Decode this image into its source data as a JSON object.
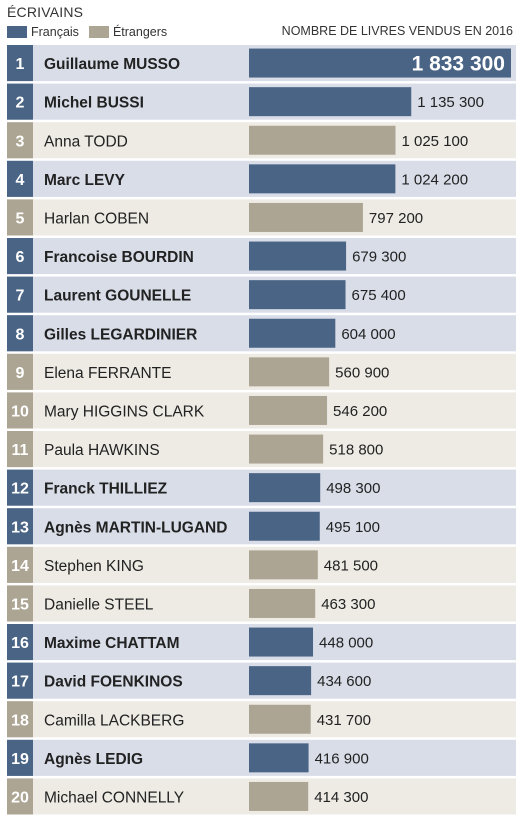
{
  "header": {
    "title": "ÉCRIVAINS",
    "legend": [
      {
        "label": "Français",
        "color": "#4a6485"
      },
      {
        "label": "Étrangers",
        "color": "#ada593"
      }
    ],
    "measure_label": "NOMBRE DE LIVRES VENDUS EN 2016"
  },
  "colors": {
    "francais_bar": "#4a6485",
    "etrangers_bar": "#ada593",
    "francais_row": "#d8dde8",
    "etrangers_row": "#eeebe5",
    "francais_rank_box": "#4a6485",
    "etrangers_rank_box": "#ada593"
  },
  "chart_data": {
    "type": "bar",
    "orientation": "horizontal",
    "title": "",
    "series_names": [
      "Français",
      "Étrangers"
    ],
    "xlim": [
      0,
      1833300
    ],
    "items": [
      {
        "rank": "1",
        "name": "Guillaume MUSSO",
        "value": 1833300,
        "label": "1 833 300",
        "group": "Français"
      },
      {
        "rank": "2",
        "name": "Michel BUSSI",
        "value": 1135300,
        "label": "1 135 300",
        "group": "Français"
      },
      {
        "rank": "3",
        "name": "Anna TODD",
        "value": 1025100,
        "label": "1 025 100",
        "group": "Étrangers"
      },
      {
        "rank": "4",
        "name": "Marc LEVY",
        "value": 1024200,
        "label": "1 024 200",
        "group": "Français"
      },
      {
        "rank": "5",
        "name": "Harlan COBEN",
        "value": 797200,
        "label": "797 200",
        "group": "Étrangers"
      },
      {
        "rank": "6",
        "name": "Francoise BOURDIN",
        "value": 679300,
        "label": "679 300",
        "group": "Français"
      },
      {
        "rank": "7",
        "name": "Laurent GOUNELLE",
        "value": 675400,
        "label": "675 400",
        "group": "Français"
      },
      {
        "rank": "8",
        "name": "Gilles LEGARDINIER",
        "value": 604000,
        "label": "604 000",
        "group": "Français"
      },
      {
        "rank": "9",
        "name": "Elena FERRANTE",
        "value": 560900,
        "label": "560 900",
        "group": "Étrangers"
      },
      {
        "rank": "10",
        "name": "Mary HIGGINS CLARK",
        "value": 546200,
        "label": "546 200",
        "group": "Étrangers"
      },
      {
        "rank": "11",
        "name": "Paula HAWKINS",
        "value": 518800,
        "label": "518 800",
        "group": "Étrangers"
      },
      {
        "rank": "12",
        "name": "Franck THILLIEZ",
        "value": 498300,
        "label": "498 300",
        "group": "Français"
      },
      {
        "rank": "13",
        "name": "Agnès MARTIN-LUGAND",
        "value": 495100,
        "label": "495 100",
        "group": "Français"
      },
      {
        "rank": "14",
        "name": "Stephen KING",
        "value": 481500,
        "label": "481 500",
        "group": "Étrangers"
      },
      {
        "rank": "15",
        "name": "Danielle STEEL",
        "value": 463300,
        "label": "463 300",
        "group": "Étrangers"
      },
      {
        "rank": "16",
        "name": "Maxime CHATTAM",
        "value": 448000,
        "label": "448 000",
        "group": "Français"
      },
      {
        "rank": "17",
        "name": "David FOENKINOS",
        "value": 434600,
        "label": "434 600",
        "group": "Français"
      },
      {
        "rank": "18",
        "name": "Camilla LACKBERG",
        "value": 431700,
        "label": "431 700",
        "group": "Étrangers"
      },
      {
        "rank": "19",
        "name": "Agnès LEDIG",
        "value": 416900,
        "label": "416 900",
        "group": "Français"
      },
      {
        "rank": "20",
        "name": "Michael CONNELLY",
        "value": 414300,
        "label": "414 300",
        "group": "Étrangers"
      }
    ]
  }
}
